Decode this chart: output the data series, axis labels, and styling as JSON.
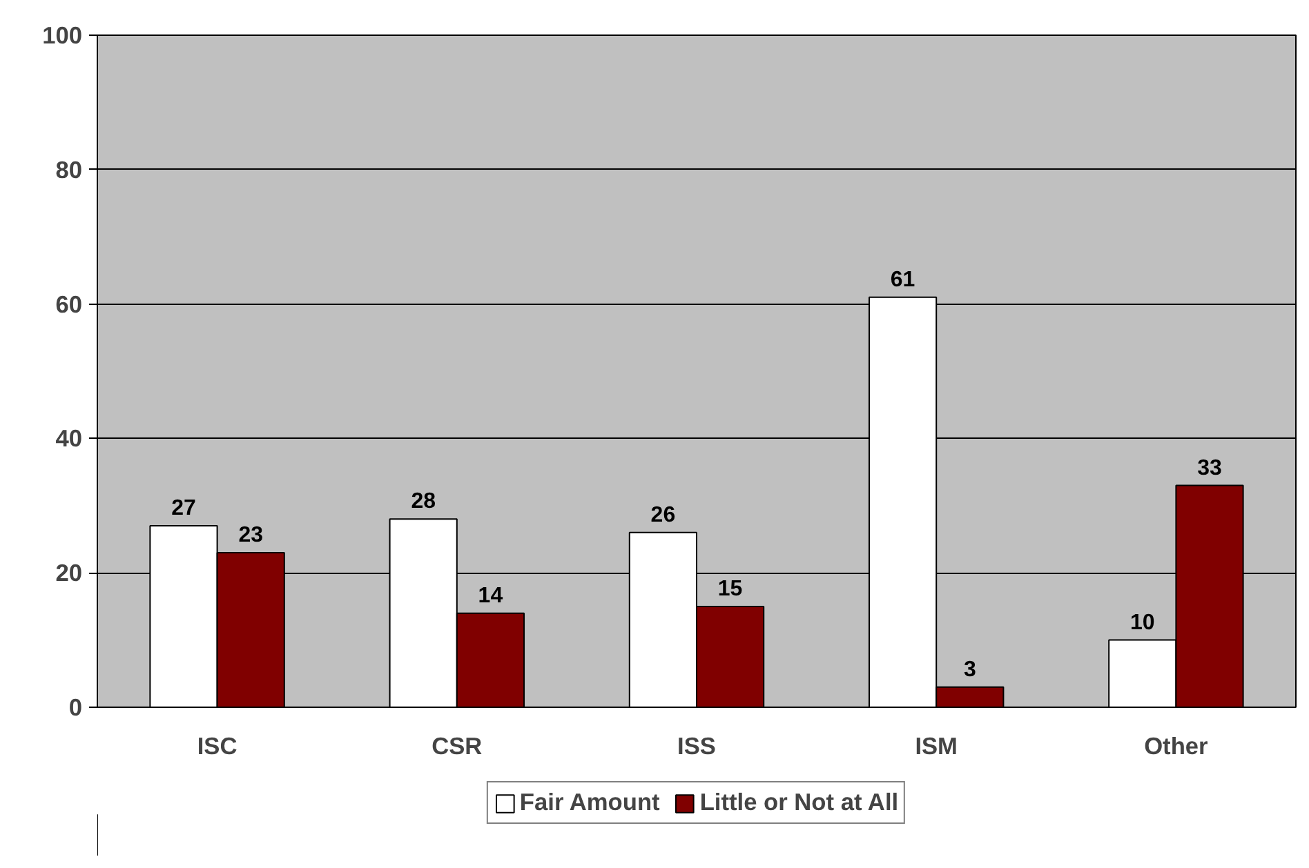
{
  "chart_data": {
    "type": "bar",
    "categories": [
      "ISC",
      "CSR",
      "ISS",
      "ISM",
      "Other"
    ],
    "series": [
      {
        "name": "Fair Amount",
        "color": "#ffffff",
        "values": [
          27,
          28,
          26,
          61,
          10
        ]
      },
      {
        "name": "Little or Not at All",
        "color": "#800000",
        "values": [
          23,
          14,
          15,
          3,
          33
        ]
      }
    ],
    "ylim": [
      0,
      100
    ],
    "yticks": [
      0,
      20,
      40,
      60,
      80,
      100
    ],
    "grid": "y",
    "legend": "bottom",
    "data_labels": true
  }
}
